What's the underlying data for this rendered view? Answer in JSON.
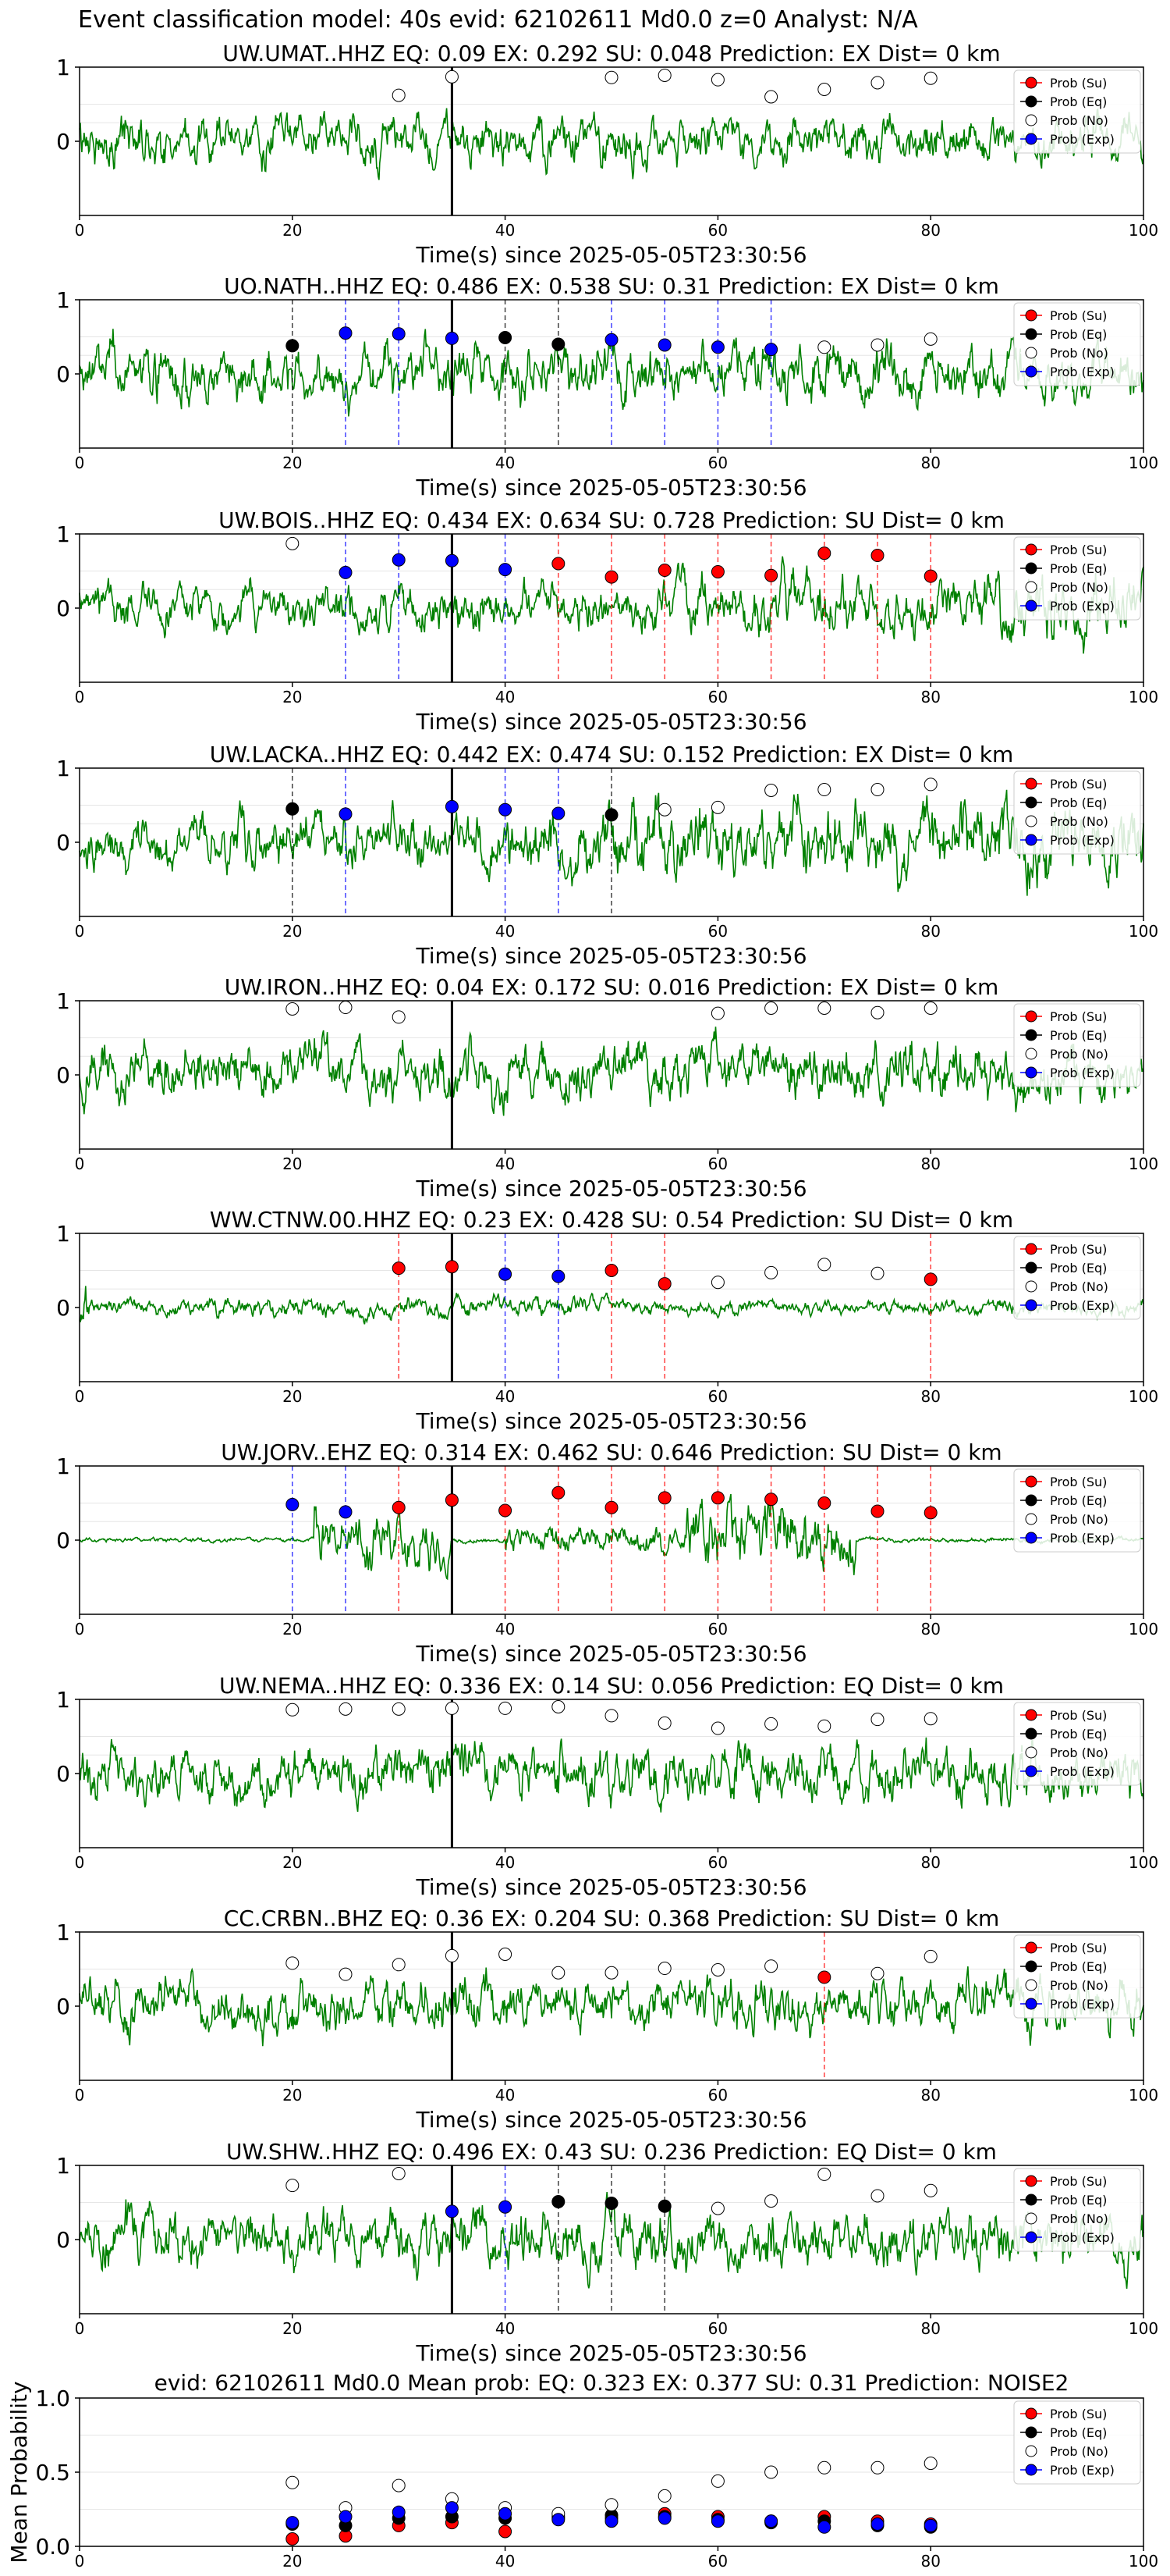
{
  "figure_title": "Event classification model: 40s evid: 62102611 Md0.0 z=0 Analyst: N/A",
  "colors": {
    "waveform": "#008000",
    "su": "#ff0000",
    "eq": "#000000",
    "no": "#ffffff",
    "exp": "#0000ff",
    "pick_line": "#000000"
  },
  "legend": [
    "Prob (Su)",
    "Prob (Eq)",
    "Prob (No)",
    "Prob (Exp)"
  ],
  "chart_data": [
    {
      "type": "line",
      "title": "UW.UMAT..HHZ   EQ: 0.09  EX: 0.292  SU: 0.048   Prediction: EX    Dist= 0 km",
      "xlabel": "Time(s) since 2025-05-05T23:30:56",
      "xlim": [
        0,
        100
      ],
      "xticks": [
        0,
        20,
        40,
        60,
        80,
        100
      ],
      "yticks": [
        0,
        1
      ],
      "pick_time": 35,
      "legend_position": "top-right",
      "markers": [
        {
          "t": 30,
          "p": 0.62,
          "c": "no"
        },
        {
          "t": 35,
          "p": 0.87,
          "c": "no"
        },
        {
          "t": 50,
          "p": 0.86,
          "c": "no"
        },
        {
          "t": 55,
          "p": 0.89,
          "c": "no"
        },
        {
          "t": 60,
          "p": 0.83,
          "c": "no"
        },
        {
          "t": 65,
          "p": 0.6,
          "c": "no"
        },
        {
          "t": 70,
          "p": 0.7,
          "c": "no"
        },
        {
          "t": 75,
          "p": 0.79,
          "c": "no"
        },
        {
          "t": 80,
          "p": 0.85,
          "c": "no"
        }
      ]
    },
    {
      "type": "line",
      "title": "UO.NATH..HHZ   EQ: 0.486  EX: 0.538  SU: 0.31   Prediction: EX    Dist= 0 km",
      "xlabel": "Time(s) since 2025-05-05T23:30:56",
      "xlim": [
        0,
        100
      ],
      "xticks": [
        0,
        20,
        40,
        60,
        80,
        100
      ],
      "yticks": [
        0,
        1
      ],
      "pick_time": 35,
      "legend_position": "top-right",
      "markers": [
        {
          "t": 20,
          "p": 0.38,
          "c": "eq"
        },
        {
          "t": 25,
          "p": 0.55,
          "c": "exp"
        },
        {
          "t": 30,
          "p": 0.54,
          "c": "exp"
        },
        {
          "t": 35,
          "p": 0.48,
          "c": "exp"
        },
        {
          "t": 40,
          "p": 0.49,
          "c": "eq"
        },
        {
          "t": 45,
          "p": 0.4,
          "c": "eq"
        },
        {
          "t": 50,
          "p": 0.46,
          "c": "exp"
        },
        {
          "t": 55,
          "p": 0.39,
          "c": "exp"
        },
        {
          "t": 60,
          "p": 0.36,
          "c": "exp"
        },
        {
          "t": 65,
          "p": 0.33,
          "c": "exp"
        },
        {
          "t": 70,
          "p": 0.36,
          "c": "no"
        },
        {
          "t": 75,
          "p": 0.39,
          "c": "no"
        },
        {
          "t": 80,
          "p": 0.47,
          "c": "no"
        }
      ]
    },
    {
      "type": "line",
      "title": "UW.BOIS..HHZ   EQ: 0.434  EX: 0.634  SU: 0.728   Prediction: SU    Dist= 0 km",
      "xlabel": "Time(s) since 2025-05-05T23:30:56",
      "xlim": [
        0,
        100
      ],
      "xticks": [
        0,
        20,
        40,
        60,
        80,
        100
      ],
      "yticks": [
        0,
        1
      ],
      "pick_time": 35,
      "legend_position": "top-right",
      "markers": [
        {
          "t": 20,
          "p": 0.87,
          "c": "no"
        },
        {
          "t": 25,
          "p": 0.48,
          "c": "exp"
        },
        {
          "t": 30,
          "p": 0.65,
          "c": "exp"
        },
        {
          "t": 35,
          "p": 0.64,
          "c": "exp"
        },
        {
          "t": 40,
          "p": 0.52,
          "c": "exp"
        },
        {
          "t": 45,
          "p": 0.6,
          "c": "su"
        },
        {
          "t": 50,
          "p": 0.42,
          "c": "su"
        },
        {
          "t": 55,
          "p": 0.51,
          "c": "su"
        },
        {
          "t": 60,
          "p": 0.49,
          "c": "su"
        },
        {
          "t": 65,
          "p": 0.44,
          "c": "su"
        },
        {
          "t": 70,
          "p": 0.74,
          "c": "su"
        },
        {
          "t": 75,
          "p": 0.71,
          "c": "su"
        },
        {
          "t": 80,
          "p": 0.43,
          "c": "su"
        }
      ]
    },
    {
      "type": "line",
      "title": "UW.LACKA..HHZ   EQ: 0.442  EX: 0.474  SU: 0.152   Prediction: EX    Dist= 0 km",
      "xlabel": "Time(s) since 2025-05-05T23:30:56",
      "xlim": [
        0,
        100
      ],
      "xticks": [
        0,
        20,
        40,
        60,
        80,
        100
      ],
      "yticks": [
        0,
        1
      ],
      "pick_time": 35,
      "legend_position": "top-right",
      "markers": [
        {
          "t": 20,
          "p": 0.45,
          "c": "eq"
        },
        {
          "t": 25,
          "p": 0.38,
          "c": "exp"
        },
        {
          "t": 35,
          "p": 0.48,
          "c": "exp"
        },
        {
          "t": 40,
          "p": 0.44,
          "c": "exp"
        },
        {
          "t": 45,
          "p": 0.39,
          "c": "exp"
        },
        {
          "t": 50,
          "p": 0.37,
          "c": "eq"
        },
        {
          "t": 55,
          "p": 0.44,
          "c": "no"
        },
        {
          "t": 60,
          "p": 0.47,
          "c": "no"
        },
        {
          "t": 65,
          "p": 0.7,
          "c": "no"
        },
        {
          "t": 70,
          "p": 0.71,
          "c": "no"
        },
        {
          "t": 75,
          "p": 0.71,
          "c": "no"
        },
        {
          "t": 80,
          "p": 0.78,
          "c": "no"
        }
      ]
    },
    {
      "type": "line",
      "title": "UW.IRON..HHZ   EQ: 0.04  EX: 0.172  SU: 0.016   Prediction: EX    Dist= 0 km",
      "xlabel": "Time(s) since 2025-05-05T23:30:56",
      "xlim": [
        0,
        100
      ],
      "xticks": [
        0,
        20,
        40,
        60,
        80,
        100
      ],
      "yticks": [
        0,
        1
      ],
      "pick_time": 35,
      "legend_position": "top-right",
      "markers": [
        {
          "t": 20,
          "p": 0.89,
          "c": "no"
        },
        {
          "t": 25,
          "p": 0.91,
          "c": "no"
        },
        {
          "t": 30,
          "p": 0.78,
          "c": "no"
        },
        {
          "t": 60,
          "p": 0.83,
          "c": "no"
        },
        {
          "t": 65,
          "p": 0.9,
          "c": "no"
        },
        {
          "t": 70,
          "p": 0.9,
          "c": "no"
        },
        {
          "t": 75,
          "p": 0.84,
          "c": "no"
        },
        {
          "t": 80,
          "p": 0.9,
          "c": "no"
        }
      ]
    },
    {
      "type": "line",
      "title": "WW.CTNW.00.HHZ   EQ: 0.23  EX: 0.428  SU: 0.54   Prediction: SU    Dist= 0 km",
      "xlabel": "Time(s) since 2025-05-05T23:30:56",
      "xlim": [
        0,
        100
      ],
      "xticks": [
        0,
        20,
        40,
        60,
        80,
        100
      ],
      "yticks": [
        0,
        1
      ],
      "pick_time": 35,
      "legend_position": "top-right",
      "markers": [
        {
          "t": 30,
          "p": 0.53,
          "c": "su"
        },
        {
          "t": 35,
          "p": 0.55,
          "c": "su"
        },
        {
          "t": 40,
          "p": 0.45,
          "c": "exp"
        },
        {
          "t": 45,
          "p": 0.42,
          "c": "exp"
        },
        {
          "t": 50,
          "p": 0.5,
          "c": "su"
        },
        {
          "t": 55,
          "p": 0.32,
          "c": "su"
        },
        {
          "t": 60,
          "p": 0.34,
          "c": "no"
        },
        {
          "t": 65,
          "p": 0.47,
          "c": "no"
        },
        {
          "t": 70,
          "p": 0.58,
          "c": "no"
        },
        {
          "t": 75,
          "p": 0.46,
          "c": "no"
        },
        {
          "t": 80,
          "p": 0.38,
          "c": "su"
        }
      ]
    },
    {
      "type": "line",
      "title": "UW.JORV..EHZ   EQ: 0.314  EX: 0.462  SU: 0.646   Prediction: SU    Dist= 0 km",
      "xlabel": "Time(s) since 2025-05-05T23:30:56",
      "xlim": [
        0,
        100
      ],
      "xticks": [
        0,
        20,
        40,
        60,
        80,
        100
      ],
      "yticks": [
        0,
        1
      ],
      "pick_time": 35,
      "legend_position": "top-right",
      "markers": [
        {
          "t": 20,
          "p": 0.48,
          "c": "exp"
        },
        {
          "t": 25,
          "p": 0.38,
          "c": "exp"
        },
        {
          "t": 30,
          "p": 0.44,
          "c": "su"
        },
        {
          "t": 35,
          "p": 0.54,
          "c": "su"
        },
        {
          "t": 40,
          "p": 0.4,
          "c": "su"
        },
        {
          "t": 45,
          "p": 0.64,
          "c": "su"
        },
        {
          "t": 50,
          "p": 0.44,
          "c": "su"
        },
        {
          "t": 55,
          "p": 0.57,
          "c": "su"
        },
        {
          "t": 60,
          "p": 0.57,
          "c": "su"
        },
        {
          "t": 65,
          "p": 0.55,
          "c": "su"
        },
        {
          "t": 70,
          "p": 0.5,
          "c": "su"
        },
        {
          "t": 75,
          "p": 0.39,
          "c": "su"
        },
        {
          "t": 80,
          "p": 0.37,
          "c": "su"
        }
      ]
    },
    {
      "type": "line",
      "title": "UW.NEMA..HHZ   EQ: 0.336  EX: 0.14  SU: 0.056   Prediction: EQ    Dist= 0 km",
      "xlabel": "Time(s) since 2025-05-05T23:30:56",
      "xlim": [
        0,
        100
      ],
      "xticks": [
        0,
        20,
        40,
        60,
        80,
        100
      ],
      "yticks": [
        0,
        1
      ],
      "pick_time": 35,
      "legend_position": "top-right",
      "markers": [
        {
          "t": 20,
          "p": 0.86,
          "c": "no"
        },
        {
          "t": 25,
          "p": 0.87,
          "c": "no"
        },
        {
          "t": 30,
          "p": 0.87,
          "c": "no"
        },
        {
          "t": 35,
          "p": 0.88,
          "c": "no"
        },
        {
          "t": 40,
          "p": 0.88,
          "c": "no"
        },
        {
          "t": 45,
          "p": 0.9,
          "c": "no"
        },
        {
          "t": 50,
          "p": 0.78,
          "c": "no"
        },
        {
          "t": 55,
          "p": 0.68,
          "c": "no"
        },
        {
          "t": 60,
          "p": 0.61,
          "c": "no"
        },
        {
          "t": 65,
          "p": 0.67,
          "c": "no"
        },
        {
          "t": 70,
          "p": 0.64,
          "c": "no"
        },
        {
          "t": 75,
          "p": 0.73,
          "c": "no"
        },
        {
          "t": 80,
          "p": 0.74,
          "c": "no"
        }
      ]
    },
    {
      "type": "line",
      "title": "CC.CRBN..BHZ   EQ: 0.36  EX: 0.204  SU: 0.368   Prediction: SU    Dist= 0 km",
      "xlabel": "Time(s) since 2025-05-05T23:30:56",
      "xlim": [
        0,
        100
      ],
      "xticks": [
        0,
        20,
        40,
        60,
        80,
        100
      ],
      "yticks": [
        0,
        1
      ],
      "pick_time": 35,
      "legend_position": "top-right",
      "markers": [
        {
          "t": 20,
          "p": 0.58,
          "c": "no"
        },
        {
          "t": 25,
          "p": 0.43,
          "c": "no"
        },
        {
          "t": 30,
          "p": 0.56,
          "c": "no"
        },
        {
          "t": 35,
          "p": 0.68,
          "c": "no"
        },
        {
          "t": 40,
          "p": 0.7,
          "c": "no"
        },
        {
          "t": 45,
          "p": 0.45,
          "c": "no"
        },
        {
          "t": 50,
          "p": 0.45,
          "c": "no"
        },
        {
          "t": 55,
          "p": 0.51,
          "c": "no"
        },
        {
          "t": 60,
          "p": 0.49,
          "c": "no"
        },
        {
          "t": 65,
          "p": 0.54,
          "c": "no"
        },
        {
          "t": 70,
          "p": 0.39,
          "c": "su"
        },
        {
          "t": 75,
          "p": 0.44,
          "c": "no"
        },
        {
          "t": 80,
          "p": 0.67,
          "c": "no"
        }
      ]
    },
    {
      "type": "line",
      "title": "UW.SHW..HHZ   EQ: 0.496  EX: 0.43  SU: 0.236   Prediction: EQ    Dist= 0 km",
      "xlabel": "Time(s) since 2025-05-05T23:30:56",
      "xlim": [
        0,
        100
      ],
      "xticks": [
        0,
        20,
        40,
        60,
        80,
        100
      ],
      "yticks": [
        0,
        1
      ],
      "pick_time": 35,
      "legend_position": "top-right",
      "markers": [
        {
          "t": 20,
          "p": 0.73,
          "c": "no"
        },
        {
          "t": 30,
          "p": 0.89,
          "c": "no"
        },
        {
          "t": 35,
          "p": 0.38,
          "c": "exp"
        },
        {
          "t": 40,
          "p": 0.44,
          "c": "exp"
        },
        {
          "t": 45,
          "p": 0.51,
          "c": "eq"
        },
        {
          "t": 50,
          "p": 0.49,
          "c": "eq"
        },
        {
          "t": 55,
          "p": 0.45,
          "c": "eq"
        },
        {
          "t": 60,
          "p": 0.42,
          "c": "no"
        },
        {
          "t": 65,
          "p": 0.52,
          "c": "no"
        },
        {
          "t": 70,
          "p": 0.88,
          "c": "no"
        },
        {
          "t": 75,
          "p": 0.59,
          "c": "no"
        },
        {
          "t": 80,
          "p": 0.66,
          "c": "no"
        }
      ]
    },
    {
      "type": "scatter",
      "title": "evid: 62102611  Md0.0   Mean prob:   EQ: 0.323  EX: 0.377  SU: 0.31   Prediction: NOISE2",
      "ylabel": "Mean Probability",
      "xlim": [
        0,
        100
      ],
      "ylim": [
        0,
        1
      ],
      "xticks": [
        0,
        20,
        40,
        60,
        80,
        100
      ],
      "yticks": [
        0.0,
        0.5,
        1.0
      ],
      "legend_position": "top-right",
      "series": [
        {
          "name": "Prob (Su)",
          "color": "su",
          "x": [
            20,
            25,
            30,
            35,
            40,
            45,
            50,
            55,
            60,
            65,
            70,
            75,
            80
          ],
          "y": [
            0.05,
            0.07,
            0.14,
            0.16,
            0.1,
            0.2,
            0.19,
            0.22,
            0.2,
            0.17,
            0.2,
            0.17,
            0.15
          ]
        },
        {
          "name": "Prob (Eq)",
          "color": "eq",
          "x": [
            20,
            25,
            30,
            35,
            40,
            45,
            50,
            55,
            60,
            65,
            70,
            75,
            80
          ],
          "y": [
            0.15,
            0.14,
            0.19,
            0.2,
            0.19,
            0.19,
            0.21,
            0.2,
            0.18,
            0.16,
            0.17,
            0.14,
            0.13
          ]
        },
        {
          "name": "Prob (No)",
          "color": "no",
          "x": [
            20,
            25,
            30,
            35,
            40,
            45,
            50,
            55,
            60,
            65,
            70,
            75,
            80
          ],
          "y": [
            0.43,
            0.26,
            0.41,
            0.32,
            0.26,
            0.22,
            0.28,
            0.34,
            0.44,
            0.5,
            0.53,
            0.53,
            0.56
          ]
        },
        {
          "name": "Prob (Exp)",
          "color": "exp",
          "x": [
            20,
            25,
            30,
            35,
            40,
            45,
            50,
            55,
            60,
            65,
            70,
            75,
            80
          ],
          "y": [
            0.16,
            0.2,
            0.23,
            0.26,
            0.22,
            0.18,
            0.17,
            0.19,
            0.17,
            0.17,
            0.13,
            0.15,
            0.14
          ]
        }
      ]
    }
  ]
}
